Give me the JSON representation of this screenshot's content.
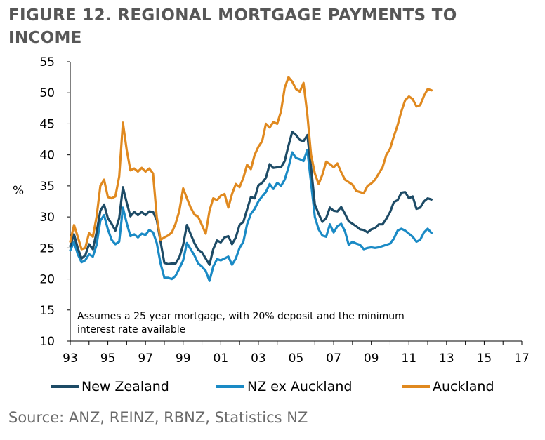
{
  "title": "FIGURE 12. REGIONAL MORTGAGE PAYMENTS TO INCOME",
  "source": "Source: ANZ, REINZ, RBNZ, Statistics NZ",
  "colors": {
    "new_zealand": "#1d4b66",
    "nz_ex_auckland": "#1a8ac5",
    "auckland": "#e0891f"
  },
  "chart_data": {
    "type": "line",
    "title": "FIGURE 12. REGIONAL MORTGAGE PAYMENTS TO INCOME",
    "xlabel": "",
    "ylabel": "%",
    "ylim": [
      10,
      55
    ],
    "xlim": [
      1993,
      2017
    ],
    "y_ticks": [
      "10",
      "15",
      "20",
      "25",
      "30",
      "35",
      "40",
      "45",
      "50",
      "55"
    ],
    "x_ticks": [
      "93",
      "95",
      "97",
      "99",
      "01",
      "03",
      "05",
      "07",
      "09",
      "11",
      "13",
      "15",
      "17"
    ],
    "grid": false,
    "legend_placement": "bottom",
    "annotation": {
      "line1": "Assumes a 25 year mortgage, with 20% deposit and the minimum",
      "line2": "interest rate available"
    },
    "series": [
      {
        "name": "New Zealand",
        "color": "#1d4b66",
        "points": [
          [
            1993.0,
            25.3
          ],
          [
            1993.2,
            27.2
          ],
          [
            1993.4,
            25.0
          ],
          [
            1993.6,
            23.3
          ],
          [
            1993.8,
            23.8
          ],
          [
            1994.0,
            25.6
          ],
          [
            1994.2,
            24.8
          ],
          [
            1994.4,
            27.5
          ],
          [
            1994.6,
            31.0
          ],
          [
            1994.8,
            32.0
          ],
          [
            1995.0,
            29.8
          ],
          [
            1995.2,
            28.9
          ],
          [
            1995.4,
            27.8
          ],
          [
            1995.6,
            29.8
          ],
          [
            1995.8,
            34.8
          ],
          [
            1996.0,
            32.3
          ],
          [
            1996.2,
            30.1
          ],
          [
            1996.4,
            30.8
          ],
          [
            1996.6,
            30.3
          ],
          [
            1996.8,
            30.8
          ],
          [
            1997.0,
            30.3
          ],
          [
            1997.2,
            30.9
          ],
          [
            1997.4,
            30.8
          ],
          [
            1997.6,
            29.5
          ],
          [
            1997.8,
            26.0
          ],
          [
            1998.0,
            22.6
          ],
          [
            1998.2,
            22.4
          ],
          [
            1998.4,
            22.5
          ],
          [
            1998.6,
            22.5
          ],
          [
            1998.8,
            23.5
          ],
          [
            1999.0,
            25.5
          ],
          [
            1999.2,
            28.7
          ],
          [
            1999.4,
            27.2
          ],
          [
            1999.6,
            25.8
          ],
          [
            1999.8,
            24.7
          ],
          [
            2000.0,
            24.3
          ],
          [
            2000.2,
            23.3
          ],
          [
            2000.4,
            22.3
          ],
          [
            2000.6,
            24.8
          ],
          [
            2000.8,
            26.2
          ],
          [
            2001.0,
            25.9
          ],
          [
            2001.2,
            26.7
          ],
          [
            2001.4,
            26.9
          ],
          [
            2001.6,
            25.6
          ],
          [
            2001.8,
            26.7
          ],
          [
            2002.0,
            28.7
          ],
          [
            2002.2,
            29.2
          ],
          [
            2002.4,
            31.2
          ],
          [
            2002.6,
            33.2
          ],
          [
            2002.8,
            33.0
          ],
          [
            2003.0,
            35.1
          ],
          [
            2003.2,
            35.5
          ],
          [
            2003.4,
            36.3
          ],
          [
            2003.6,
            38.5
          ],
          [
            2003.8,
            37.9
          ],
          [
            2004.0,
            38.0
          ],
          [
            2004.2,
            38.0
          ],
          [
            2004.4,
            39.0
          ],
          [
            2004.6,
            41.5
          ],
          [
            2004.8,
            43.7
          ],
          [
            2005.0,
            43.2
          ],
          [
            2005.2,
            42.4
          ],
          [
            2005.4,
            42.2
          ],
          [
            2005.6,
            43.2
          ],
          [
            2005.8,
            38.0
          ],
          [
            2006.0,
            32.0
          ],
          [
            2006.2,
            30.5
          ],
          [
            2006.4,
            29.2
          ],
          [
            2006.6,
            29.8
          ],
          [
            2006.8,
            31.5
          ],
          [
            2007.0,
            31.0
          ],
          [
            2007.2,
            30.9
          ],
          [
            2007.4,
            31.6
          ],
          [
            2007.6,
            30.5
          ],
          [
            2007.8,
            29.3
          ],
          [
            2008.0,
            28.9
          ],
          [
            2008.2,
            28.5
          ],
          [
            2008.4,
            28.0
          ],
          [
            2008.6,
            27.9
          ],
          [
            2008.8,
            27.5
          ],
          [
            2009.0,
            28.0
          ],
          [
            2009.2,
            28.2
          ],
          [
            2009.4,
            28.8
          ],
          [
            2009.6,
            28.8
          ],
          [
            2009.8,
            29.7
          ],
          [
            2010.0,
            30.8
          ],
          [
            2010.2,
            32.4
          ],
          [
            2010.4,
            32.7
          ],
          [
            2010.6,
            33.9
          ],
          [
            2010.8,
            34.0
          ],
          [
            2011.0,
            33.0
          ],
          [
            2011.2,
            33.3
          ],
          [
            2011.4,
            31.3
          ],
          [
            2011.6,
            31.5
          ],
          [
            2011.8,
            32.5
          ],
          [
            2012.0,
            33.0
          ],
          [
            2012.2,
            32.8
          ]
        ]
      },
      {
        "name": "NZ ex Auckland",
        "color": "#1a8ac5",
        "points": [
          [
            1993.0,
            24.6
          ],
          [
            1993.2,
            26.0
          ],
          [
            1993.4,
            24.0
          ],
          [
            1993.6,
            22.7
          ],
          [
            1993.8,
            23.0
          ],
          [
            1994.0,
            24.0
          ],
          [
            1994.2,
            23.6
          ],
          [
            1994.4,
            25.5
          ],
          [
            1994.6,
            29.4
          ],
          [
            1994.8,
            30.3
          ],
          [
            1995.0,
            28.0
          ],
          [
            1995.2,
            26.3
          ],
          [
            1995.4,
            25.6
          ],
          [
            1995.6,
            26.0
          ],
          [
            1995.8,
            31.5
          ],
          [
            1996.0,
            29.0
          ],
          [
            1996.2,
            26.9
          ],
          [
            1996.4,
            27.2
          ],
          [
            1996.6,
            26.7
          ],
          [
            1996.8,
            27.3
          ],
          [
            1997.0,
            27.1
          ],
          [
            1997.2,
            27.9
          ],
          [
            1997.4,
            27.5
          ],
          [
            1997.6,
            25.8
          ],
          [
            1997.8,
            22.5
          ],
          [
            1998.0,
            20.2
          ],
          [
            1998.2,
            20.2
          ],
          [
            1998.4,
            20.0
          ],
          [
            1998.6,
            20.5
          ],
          [
            1998.8,
            21.7
          ],
          [
            1999.0,
            23.0
          ],
          [
            1999.2,
            25.8
          ],
          [
            1999.4,
            24.8
          ],
          [
            1999.6,
            23.8
          ],
          [
            1999.8,
            22.5
          ],
          [
            2000.0,
            22.0
          ],
          [
            2000.2,
            21.3
          ],
          [
            2000.4,
            19.7
          ],
          [
            2000.6,
            22.0
          ],
          [
            2000.8,
            23.2
          ],
          [
            2001.0,
            23.0
          ],
          [
            2001.2,
            23.3
          ],
          [
            2001.4,
            23.6
          ],
          [
            2001.6,
            22.3
          ],
          [
            2001.8,
            23.3
          ],
          [
            2002.0,
            25.0
          ],
          [
            2002.2,
            26.0
          ],
          [
            2002.4,
            28.8
          ],
          [
            2002.6,
            30.5
          ],
          [
            2002.8,
            31.3
          ],
          [
            2003.0,
            32.5
          ],
          [
            2003.2,
            33.3
          ],
          [
            2003.4,
            34.0
          ],
          [
            2003.6,
            35.3
          ],
          [
            2003.8,
            34.5
          ],
          [
            2004.0,
            35.5
          ],
          [
            2004.2,
            35.0
          ],
          [
            2004.4,
            36.0
          ],
          [
            2004.6,
            38.0
          ],
          [
            2004.8,
            40.4
          ],
          [
            2005.0,
            39.5
          ],
          [
            2005.2,
            39.3
          ],
          [
            2005.4,
            39.0
          ],
          [
            2005.6,
            40.8
          ],
          [
            2005.8,
            35.5
          ],
          [
            2006.0,
            30.0
          ],
          [
            2006.2,
            28.0
          ],
          [
            2006.4,
            27.0
          ],
          [
            2006.6,
            26.8
          ],
          [
            2006.8,
            28.8
          ],
          [
            2007.0,
            27.5
          ],
          [
            2007.2,
            28.5
          ],
          [
            2007.4,
            28.9
          ],
          [
            2007.6,
            27.7
          ],
          [
            2007.8,
            25.5
          ],
          [
            2008.0,
            26.0
          ],
          [
            2008.2,
            25.7
          ],
          [
            2008.4,
            25.5
          ],
          [
            2008.6,
            24.8
          ],
          [
            2008.8,
            25.0
          ],
          [
            2009.0,
            25.1
          ],
          [
            2009.2,
            25.0
          ],
          [
            2009.4,
            25.1
          ],
          [
            2009.6,
            25.3
          ],
          [
            2009.8,
            25.5
          ],
          [
            2010.0,
            25.7
          ],
          [
            2010.2,
            26.5
          ],
          [
            2010.4,
            27.8
          ],
          [
            2010.6,
            28.1
          ],
          [
            2010.8,
            27.8
          ],
          [
            2011.0,
            27.3
          ],
          [
            2011.2,
            26.8
          ],
          [
            2011.4,
            26.0
          ],
          [
            2011.6,
            26.3
          ],
          [
            2011.8,
            27.5
          ],
          [
            2012.0,
            28.1
          ],
          [
            2012.2,
            27.4
          ]
        ]
      },
      {
        "name": "Auckland",
        "color": "#e0891f",
        "points": [
          [
            1993.0,
            26.0
          ],
          [
            1993.2,
            28.7
          ],
          [
            1993.4,
            26.8
          ],
          [
            1993.6,
            24.8
          ],
          [
            1993.8,
            25.0
          ],
          [
            1994.0,
            27.4
          ],
          [
            1994.2,
            26.8
          ],
          [
            1994.4,
            30.0
          ],
          [
            1994.6,
            35.0
          ],
          [
            1994.8,
            36.0
          ],
          [
            1995.0,
            33.2
          ],
          [
            1995.2,
            33.0
          ],
          [
            1995.4,
            33.3
          ],
          [
            1995.6,
            36.5
          ],
          [
            1995.8,
            45.2
          ],
          [
            1996.0,
            40.8
          ],
          [
            1996.2,
            37.5
          ],
          [
            1996.4,
            37.8
          ],
          [
            1996.6,
            37.3
          ],
          [
            1996.8,
            37.9
          ],
          [
            1997.0,
            37.3
          ],
          [
            1997.2,
            37.8
          ],
          [
            1997.4,
            37.0
          ],
          [
            1997.6,
            30.0
          ],
          [
            1997.8,
            26.3
          ],
          [
            1998.0,
            26.7
          ],
          [
            1998.2,
            27.0
          ],
          [
            1998.4,
            27.5
          ],
          [
            1998.6,
            28.9
          ],
          [
            1998.8,
            31.0
          ],
          [
            1999.0,
            34.6
          ],
          [
            1999.2,
            33.0
          ],
          [
            1999.4,
            31.5
          ],
          [
            1999.6,
            30.4
          ],
          [
            1999.8,
            30.0
          ],
          [
            2000.0,
            28.7
          ],
          [
            2000.2,
            27.3
          ],
          [
            2000.4,
            31.0
          ],
          [
            2000.6,
            33.0
          ],
          [
            2000.8,
            32.7
          ],
          [
            2001.0,
            33.4
          ],
          [
            2001.2,
            33.7
          ],
          [
            2001.4,
            31.5
          ],
          [
            2001.6,
            33.7
          ],
          [
            2001.8,
            35.3
          ],
          [
            2002.0,
            34.8
          ],
          [
            2002.2,
            36.3
          ],
          [
            2002.4,
            38.4
          ],
          [
            2002.6,
            37.7
          ],
          [
            2002.8,
            40.0
          ],
          [
            2003.0,
            41.3
          ],
          [
            2003.2,
            42.2
          ],
          [
            2003.4,
            45.0
          ],
          [
            2003.6,
            44.4
          ],
          [
            2003.8,
            45.3
          ],
          [
            2004.0,
            45.0
          ],
          [
            2004.2,
            47.0
          ],
          [
            2004.4,
            50.8
          ],
          [
            2004.6,
            52.5
          ],
          [
            2004.8,
            51.8
          ],
          [
            2005.0,
            50.6
          ],
          [
            2005.2,
            50.2
          ],
          [
            2005.4,
            51.6
          ],
          [
            2005.6,
            46.5
          ],
          [
            2005.8,
            40.0
          ],
          [
            2006.0,
            37.0
          ],
          [
            2006.2,
            35.3
          ],
          [
            2006.4,
            36.8
          ],
          [
            2006.6,
            38.9
          ],
          [
            2006.8,
            38.5
          ],
          [
            2007.0,
            38.0
          ],
          [
            2007.2,
            38.6
          ],
          [
            2007.4,
            37.2
          ],
          [
            2007.6,
            36.0
          ],
          [
            2007.8,
            35.6
          ],
          [
            2008.0,
            35.2
          ],
          [
            2008.2,
            34.2
          ],
          [
            2008.4,
            34.0
          ],
          [
            2008.6,
            33.8
          ],
          [
            2008.8,
            35.0
          ],
          [
            2009.0,
            35.4
          ],
          [
            2009.2,
            36.0
          ],
          [
            2009.4,
            37.0
          ],
          [
            2009.6,
            38.0
          ],
          [
            2009.8,
            40.0
          ],
          [
            2010.0,
            41.0
          ],
          [
            2010.2,
            43.0
          ],
          [
            2010.4,
            44.8
          ],
          [
            2010.6,
            47.0
          ],
          [
            2010.8,
            48.8
          ],
          [
            2011.0,
            49.4
          ],
          [
            2011.2,
            49.0
          ],
          [
            2011.4,
            47.8
          ],
          [
            2011.6,
            48.0
          ],
          [
            2011.8,
            49.5
          ],
          [
            2012.0,
            50.6
          ],
          [
            2012.2,
            50.4
          ]
        ]
      }
    ]
  }
}
